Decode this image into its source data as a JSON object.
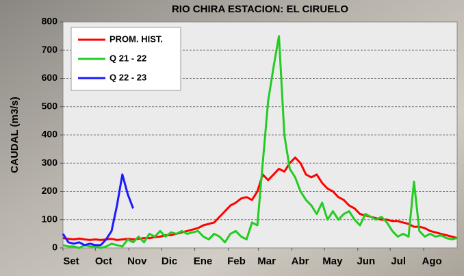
{
  "chart_data": {
    "type": "line",
    "title": "RIO CHIRA ESTACION: EL CIRUELO",
    "y_label": "CAUDAL (m3/s)",
    "x": [
      0,
      5,
      10,
      15,
      20,
      25,
      30,
      35,
      40,
      45,
      50,
      55,
      60,
      65,
      70,
      75,
      80,
      85,
      90,
      95,
      100,
      105,
      110,
      115,
      120,
      125,
      130,
      135,
      140,
      145,
      150,
      155,
      160,
      165,
      170,
      175,
      180,
      185,
      190,
      195,
      200,
      205,
      210,
      215,
      220,
      225,
      230,
      235,
      240,
      245,
      250,
      255,
      260,
      265,
      270,
      275,
      280,
      285,
      290,
      295,
      300,
      305,
      310,
      315,
      320,
      325,
      330,
      335,
      340,
      345,
      350,
      355,
      360,
      365
    ],
    "xlim": [
      0,
      365
    ],
    "xticks": [
      {
        "value": 0,
        "label": "Set"
      },
      {
        "value": 30,
        "label": "Oct"
      },
      {
        "value": 61,
        "label": "Nov"
      },
      {
        "value": 91,
        "label": "Dic"
      },
      {
        "value": 122,
        "label": "Ene"
      },
      {
        "value": 153,
        "label": "Feb"
      },
      {
        "value": 181,
        "label": "Mar"
      },
      {
        "value": 212,
        "label": "Abr"
      },
      {
        "value": 242,
        "label": "May"
      },
      {
        "value": 273,
        "label": "Jun"
      },
      {
        "value": 303,
        "label": "Jul"
      },
      {
        "value": 334,
        "label": "Ago"
      }
    ],
    "ylim": [
      0,
      800
    ],
    "yticks": [
      0,
      100,
      200,
      300,
      400,
      500,
      600,
      700,
      800
    ],
    "grid": true,
    "legend": "upper left",
    "series": [
      {
        "name": "PROM. HIST.",
        "color": "#ff0000",
        "values": [
          35,
          32,
          30,
          33,
          30,
          28,
          30,
          28,
          30,
          32,
          28,
          30,
          32,
          30,
          32,
          35,
          35,
          38,
          40,
          45,
          45,
          50,
          55,
          60,
          65,
          70,
          80,
          85,
          90,
          110,
          130,
          150,
          160,
          175,
          180,
          170,
          200,
          260,
          240,
          260,
          280,
          270,
          300,
          320,
          300,
          260,
          250,
          260,
          230,
          210,
          200,
          180,
          170,
          150,
          140,
          120,
          115,
          110,
          105,
          100,
          100,
          95,
          95,
          90,
          85,
          75,
          75,
          70,
          60,
          55,
          50,
          45,
          40,
          35
        ]
      },
      {
        "name": "Q 21 - 22",
        "color": "#22cc22",
        "values": [
          10,
          5,
          5,
          0,
          10,
          5,
          5,
          0,
          5,
          15,
          10,
          5,
          30,
          20,
          40,
          20,
          50,
          40,
          60,
          40,
          55,
          50,
          60,
          50,
          55,
          60,
          40,
          30,
          50,
          40,
          20,
          50,
          60,
          40,
          30,
          90,
          80,
          300,
          520,
          640,
          750,
          400,
          280,
          250,
          200,
          170,
          150,
          120,
          160,
          100,
          130,
          100,
          120,
          130,
          100,
          80,
          120,
          110,
          100,
          110,
          90,
          60,
          40,
          50,
          40,
          235,
          60,
          40,
          50,
          40,
          45,
          35,
          30,
          35
        ]
      },
      {
        "name": "Q 22 - 23",
        "color": "#1a1aff",
        "values": [
          50,
          20,
          15,
          20,
          10,
          15,
          10,
          10,
          30,
          60,
          150,
          260,
          190,
          140,
          null,
          null,
          null,
          null,
          null,
          null,
          null,
          null,
          null,
          null,
          null,
          null,
          null,
          null,
          null,
          null,
          null,
          null,
          null,
          null,
          null,
          null,
          null,
          null,
          null,
          null,
          null,
          null,
          null,
          null,
          null,
          null,
          null,
          null,
          null,
          null,
          null,
          null,
          null,
          null,
          null,
          null,
          null,
          null,
          null,
          null,
          null,
          null,
          null,
          null,
          null,
          null,
          null,
          null,
          null,
          null,
          null,
          null,
          null,
          null
        ]
      }
    ]
  }
}
